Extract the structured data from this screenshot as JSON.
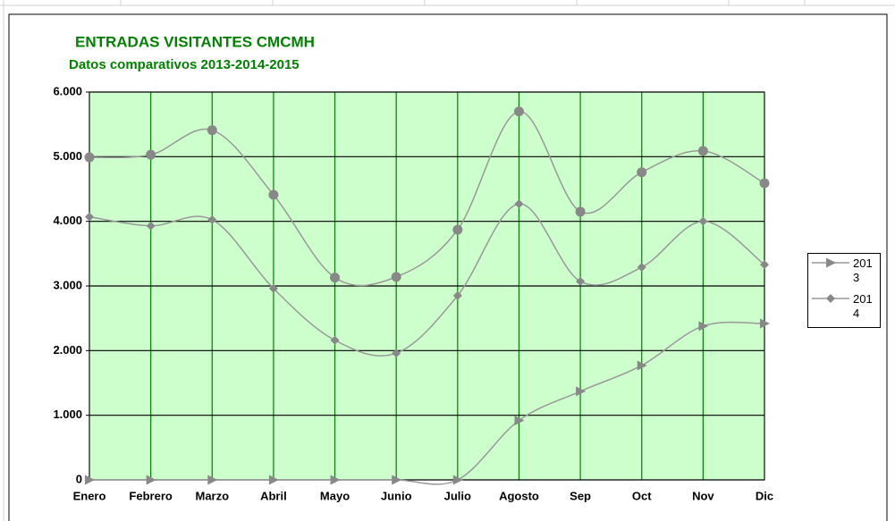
{
  "chart_data": {
    "type": "line",
    "title": "ENTRADAS VISITANTES CMCMH",
    "subtitle": "Datos comparativos 2013-2014-2015",
    "categories": [
      "Enero",
      "Febrero",
      "Marzo",
      "Abril",
      "Mayo",
      "Junio",
      "Julio",
      "Agosto",
      "Sep",
      "Oct",
      "Nov",
      "Dic"
    ],
    "series": [
      {
        "name": "2013",
        "color": "#999999",
        "marker": "triangle",
        "values": [
          0,
          0,
          0,
          0,
          0,
          0,
          0,
          920,
          1370,
          1770,
          2380,
          2420
        ]
      },
      {
        "name": "2014",
        "color": "#999999",
        "marker": "diamond",
        "values": [
          4070,
          3930,
          4025,
          2960,
          2160,
          1960,
          2850,
          4270,
          3070,
          3290,
          4000,
          3330
        ]
      },
      {
        "color": "#999999",
        "marker": "circle",
        "values": [
          4990,
          5030,
          5410,
          4410,
          3130,
          3140,
          3870,
          5700,
          4150,
          4760,
          5090,
          4590
        ]
      }
    ],
    "ylim": [
      0,
      6000
    ],
    "yticks": [
      0,
      {
        "value": 1000,
        "label": "1.000"
      },
      {
        "value": 2000,
        "label": "2.000"
      },
      {
        "value": 3000,
        "label": "3.000"
      },
      {
        "value": 4000,
        "label": "4.000"
      },
      {
        "value": 5000,
        "label": "5.000"
      },
      {
        "value": 6000,
        "label": "6.000"
      }
    ],
    "grid": true,
    "smooth": true,
    "legend": "right"
  }
}
